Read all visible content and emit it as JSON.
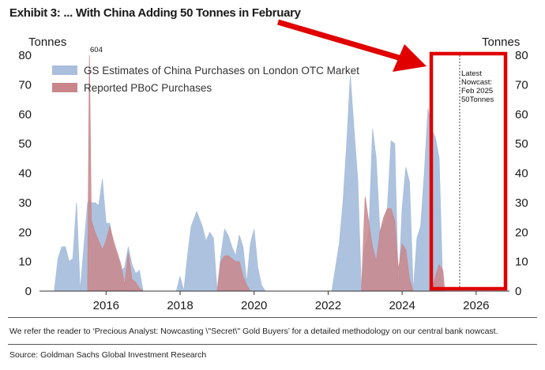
{
  "header": {
    "title": "Exhibit 3: ... With China Adding 50 Tonnes in February"
  },
  "footer": {
    "note": "We refer the reader to ‘Precious Analyst: Nowcasting \\\"Secret\\\" Gold Buyers’ for a detailed methodology on our central bank nowcast.",
    "source": "Source: Goldman Sachs Global Investment Research"
  },
  "colors": {
    "gs_estimates": "#a9bfdc",
    "pboc": "#c9878c",
    "highlight": "#e00000"
  },
  "chart_data": {
    "type": "area",
    "y_unit_left": "Tonnes",
    "y_unit_right": "Tonnes",
    "xlim": [
      2014.2,
      2026.9
    ],
    "ylim": [
      0,
      80
    ],
    "x_ticks": [
      2016,
      2018,
      2020,
      2022,
      2024,
      2026
    ],
    "y_ticks": [
      0,
      10,
      20,
      30,
      40,
      50,
      60,
      70,
      80
    ],
    "legend_placement": "top-left",
    "grid": false,
    "series": [
      {
        "name": "GS Estimates of China Purchases on London OTC Market",
        "x": [
          2014.6,
          2014.7,
          2014.8,
          2014.9,
          2015.0,
          2015.1,
          2015.2,
          2015.3,
          2015.4,
          2015.5,
          2015.55,
          2015.6,
          2015.7,
          2015.8,
          2015.9,
          2016.0,
          2016.1,
          2016.2,
          2016.3,
          2016.4,
          2016.5,
          2016.6,
          2016.7,
          2016.8,
          2016.9,
          2017.0,
          2017.3,
          2017.9,
          2018.0,
          2018.1,
          2018.2,
          2018.3,
          2018.45,
          2018.6,
          2018.7,
          2018.8,
          2018.9,
          2019.0,
          2019.1,
          2019.2,
          2019.3,
          2019.4,
          2019.5,
          2019.6,
          2019.7,
          2019.8,
          2019.9,
          2020.0,
          2020.1,
          2020.2,
          2020.3,
          2022.1,
          2022.2,
          2022.3,
          2022.4,
          2022.5,
          2022.6,
          2022.7,
          2022.8,
          2022.9,
          2023.0,
          2023.1,
          2023.2,
          2023.3,
          2023.4,
          2023.5,
          2023.6,
          2023.7,
          2023.8,
          2023.9,
          2024.0,
          2024.1,
          2024.2,
          2024.3,
          2024.4,
          2024.5,
          2024.6,
          2024.7,
          2024.8,
          2024.9,
          2025.0,
          2025.1
        ],
        "values": [
          0,
          11,
          15,
          15,
          10,
          11,
          30,
          0,
          15,
          30,
          31,
          30,
          30,
          29,
          38,
          23,
          23,
          15,
          12,
          7,
          8,
          15,
          9,
          6,
          7,
          0,
          0,
          0,
          5,
          0,
          12,
          22,
          27,
          22,
          17,
          20,
          18,
          0,
          12,
          21,
          19,
          15,
          12,
          19,
          15,
          3,
          16,
          21,
          8,
          2,
          0,
          0,
          8,
          16,
          30,
          50,
          73,
          55,
          38,
          0,
          15,
          20,
          55,
          45,
          20,
          23,
          28,
          51,
          50,
          0,
          28,
          42,
          37,
          0,
          18,
          22,
          40,
          62,
          55,
          52,
          45,
          0
        ]
      },
      {
        "name": "Reported PBoC Purchases",
        "x": [
          2015.5,
          2015.55,
          2015.6,
          2015.7,
          2015.8,
          2015.9,
          2016.0,
          2016.1,
          2016.2,
          2016.3,
          2016.4,
          2016.5,
          2016.6,
          2016.7,
          2016.8,
          2016.9,
          2017.0,
          2017.1,
          2019.0,
          2019.1,
          2019.2,
          2019.3,
          2019.4,
          2019.5,
          2019.6,
          2019.7,
          2019.8,
          2019.9,
          2022.9,
          2023.0,
          2023.1,
          2023.2,
          2023.3,
          2023.4,
          2023.5,
          2023.6,
          2023.7,
          2023.8,
          2023.9,
          2024.0,
          2024.1,
          2024.2,
          2024.3,
          2024.4,
          2024.8,
          2024.9,
          2025.0,
          2025.1,
          2025.15
        ],
        "values": [
          0,
          80,
          24,
          20,
          17,
          14,
          17,
          22,
          17,
          13,
          9,
          2,
          13,
          4,
          3,
          1,
          0,
          0,
          0,
          10,
          12,
          12,
          11,
          10,
          10,
          5,
          2,
          0,
          0,
          32,
          23,
          15,
          10,
          20,
          25,
          28,
          28,
          24,
          7,
          16,
          14,
          4,
          0,
          0,
          0,
          5,
          9,
          7,
          0
        ]
      }
    ],
    "annotations": [
      {
        "text": "604",
        "x": 2015.55,
        "note": "PBoC bar exceeds axis"
      },
      {
        "text": "Latest Nowcast: Feb 2025 50Tonnes",
        "x": 2025.15
      }
    ]
  },
  "legend": {
    "gs": "GS Estimates of China Purchases on London OTC Market",
    "pboc": "Reported PBoC Purchases"
  },
  "annotation_peak": "604",
  "annotation_nowcast": [
    "Latest",
    "Nowcast:",
    "Feb 2025",
    "50Tonnes"
  ]
}
